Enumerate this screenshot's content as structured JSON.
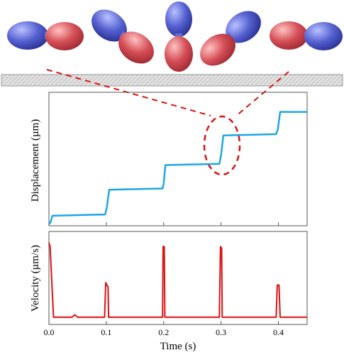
{
  "colors": {
    "displacement_line": "#1ea6e6",
    "velocity_line": "#dd1111",
    "annotation_dash": "#dd1111",
    "blue_lobe": "#4a56c8",
    "red_lobe": "#d24a52",
    "surface": "#d8d8d8"
  },
  "chart_data": [
    {
      "type": "line",
      "ylabel": "Displacement (µm)",
      "xlim": [
        0,
        0.45
      ],
      "y_ticks_shown": false,
      "x_tick_labels_shown": false,
      "series": [
        {
          "x": [
            0.0,
            0.003,
            0.006,
            0.05,
            0.098,
            0.101,
            0.105,
            0.15,
            0.198,
            0.2,
            0.203,
            0.25,
            0.297,
            0.3,
            0.304,
            0.35,
            0.396,
            0.399,
            0.403,
            0.45
          ],
          "y": [
            0.0,
            0.02,
            0.07,
            0.075,
            0.08,
            0.14,
            0.28,
            0.285,
            0.29,
            0.33,
            0.48,
            0.485,
            0.49,
            0.56,
            0.72,
            0.725,
            0.73,
            0.77,
            0.91,
            0.91
          ]
        }
      ],
      "annotations": [
        "dashed ellipse around step at 0.3 s linked to molecule orientations above"
      ]
    },
    {
      "type": "line",
      "ylabel": "Velocity (µm/s)",
      "xlabel": "Time (s)",
      "xlim": [
        0,
        0.45
      ],
      "x_ticks": [
        "0.0",
        "0.1",
        "0.2",
        "0.3",
        "0.4"
      ],
      "y_ticks_shown": false,
      "series": [
        {
          "x": [
            0.0,
            0.002,
            0.008,
            0.04,
            0.045,
            0.05,
            0.06,
            0.097,
            0.099,
            0.101,
            0.103,
            0.104,
            0.15,
            0.16,
            0.198,
            0.199,
            0.201,
            0.202,
            0.25,
            0.297,
            0.299,
            0.301,
            0.302,
            0.35,
            0.396,
            0.398,
            0.401,
            0.403,
            0.45
          ],
          "y": [
            0.95,
            0.9,
            0.02,
            0.02,
            0.05,
            0.02,
            0.02,
            0.02,
            0.45,
            0.42,
            0.4,
            0.02,
            0.02,
            0.02,
            0.02,
            0.9,
            0.9,
            0.02,
            0.02,
            0.02,
            0.9,
            0.88,
            0.02,
            0.02,
            0.02,
            0.42,
            0.42,
            0.02,
            0.02
          ]
        }
      ]
    }
  ]
}
